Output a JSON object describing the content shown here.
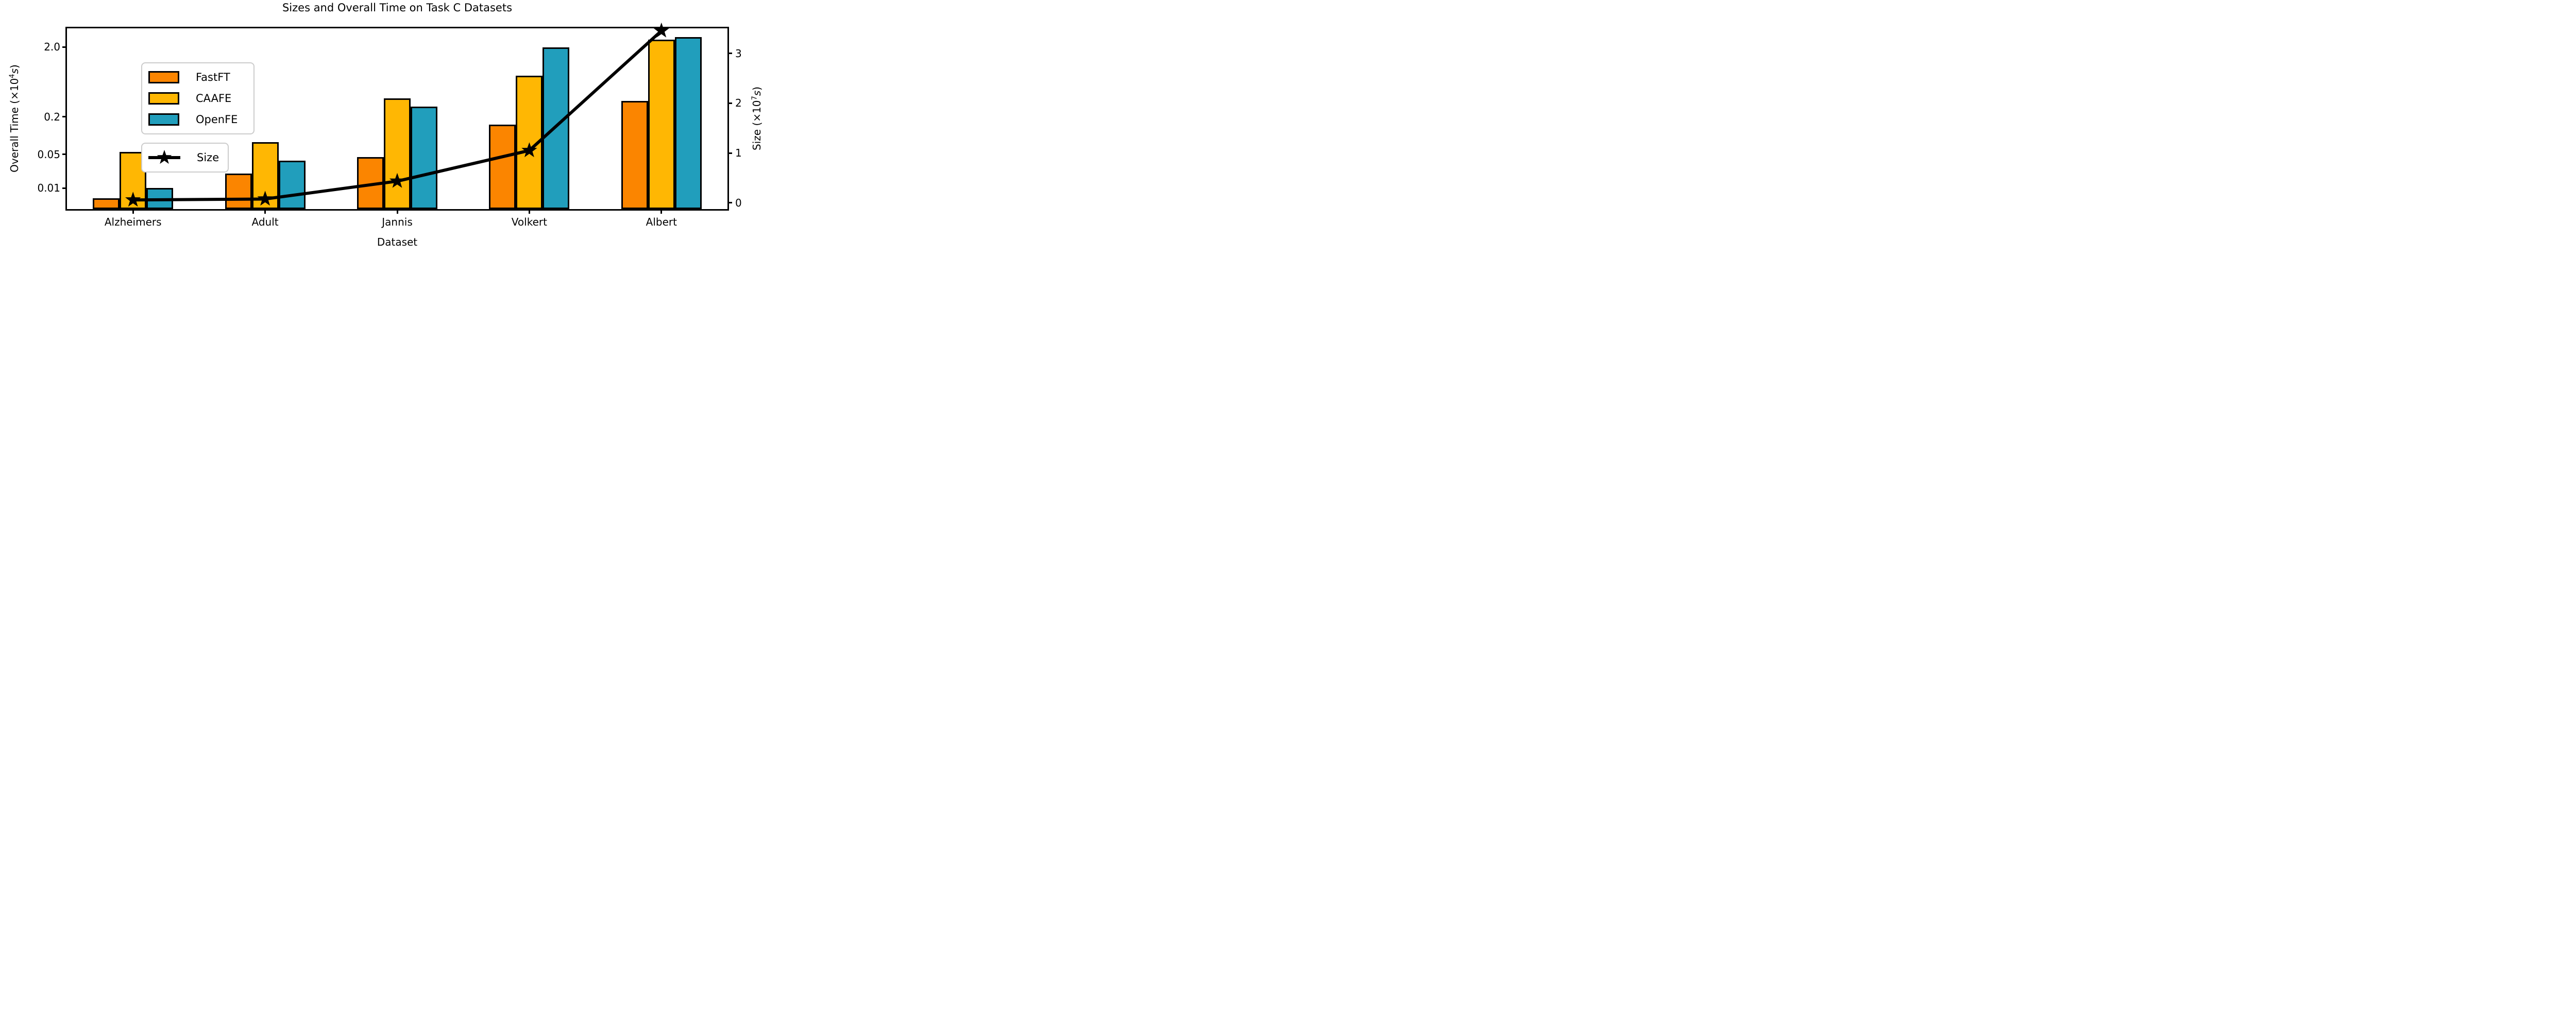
{
  "title": "Sizes and Overall Time on Task C Datasets",
  "x_axis": {
    "label": "Dataset",
    "categories": [
      "Alzheimers",
      "Adult",
      "Jannis",
      "Volkert",
      "Albert"
    ]
  },
  "y_left": {
    "ticks": [
      "2.0",
      "0.2",
      "0.05",
      "0.01"
    ],
    "tick_values": [
      2.0,
      0.2,
      0.05,
      0.01
    ],
    "display": {
      "prefix": "Overall Time (×10",
      "sup": "4",
      "unit": "s",
      "close": ")"
    }
  },
  "y_right": {
    "ticks": [
      "3",
      "2",
      "1",
      "0"
    ],
    "tick_values": [
      3,
      2,
      1,
      0
    ],
    "display": {
      "prefix": "Size (×10",
      "sup": "7",
      "unit": "s",
      "close": ")"
    }
  },
  "legend": {
    "bars": [
      {
        "label": "FastFT",
        "color": "#FB8500"
      },
      {
        "label": "CAAFE",
        "color": "#FFB703"
      },
      {
        "label": "OpenFE",
        "color": "#219EBC"
      }
    ],
    "line": {
      "label": "Size",
      "color": "#000000",
      "marker": "star-icon"
    }
  },
  "chart_data": {
    "type": "bar",
    "title": "Sizes and Overall Time on Task C Datasets",
    "xlabel": "Dataset",
    "ylabel_left": "Overall Time (×10⁴s)",
    "ylabel_right": "Size (×10⁷s)",
    "categories": [
      "Alzheimers",
      "Adult",
      "Jannis",
      "Volkert",
      "Albert"
    ],
    "series": [
      {
        "name": "FastFT",
        "type": "bar",
        "axis": "left",
        "unit": "×10⁴ s",
        "color": "#FB8500",
        "values": [
          0.006,
          0.02,
          0.044,
          0.15,
          0.34
        ]
      },
      {
        "name": "CAAFE",
        "type": "bar",
        "axis": "left",
        "unit": "×10⁴ s",
        "color": "#FFB703",
        "values": [
          0.055,
          0.078,
          0.37,
          0.79,
          2.6
        ]
      },
      {
        "name": "OpenFE",
        "type": "bar",
        "axis": "left",
        "unit": "×10⁴ s",
        "color": "#219EBC",
        "values": [
          0.01,
          0.037,
          0.28,
          2.0,
          2.85
        ]
      },
      {
        "name": "Size",
        "type": "line",
        "axis": "right",
        "unit": "×10⁷ s",
        "color": "#000000",
        "marker": "star",
        "values": [
          0.05,
          0.07,
          0.43,
          1.05,
          3.47
        ]
      }
    ],
    "y_left_scale": "nonlinear (log-like, custom tick spacing)",
    "y_left_ticks": [
      2.0,
      0.2,
      0.05,
      0.01
    ],
    "y_right_scale": "linear",
    "y_right_ticks": [
      0,
      1,
      2,
      3
    ],
    "y_right_range": [
      -0.13,
      3.52
    ],
    "legend_position": "upper left",
    "grid": false
  }
}
